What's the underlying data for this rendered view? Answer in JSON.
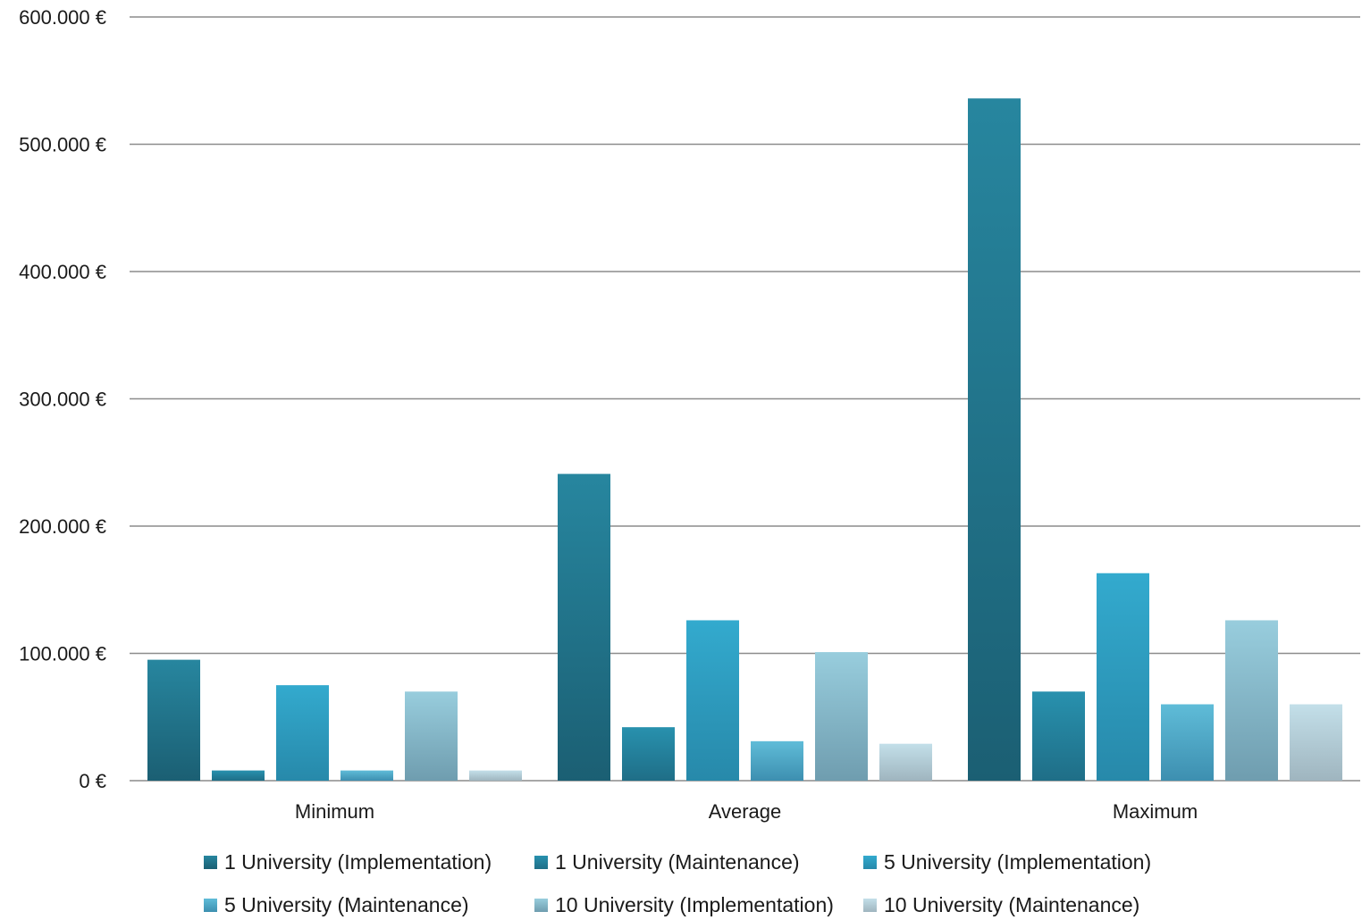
{
  "chart_data": {
    "type": "bar",
    "categories": [
      "Minimum",
      "Average",
      "Maximum"
    ],
    "series": [
      {
        "name": "1 University (Implementation)",
        "values": [
          95000,
          241000,
          536000
        ],
        "color_top": "#27869f",
        "color_bottom": "#1b5f73"
      },
      {
        "name": "1 University (Maintenance)",
        "values": [
          8000,
          42000,
          70000
        ],
        "color_top": "#2891ae",
        "color_bottom": "#1f6e87"
      },
      {
        "name": "5 University (Implementation)",
        "values": [
          75000,
          126000,
          163000
        ],
        "color_top": "#33aace",
        "color_bottom": "#2789aa"
      },
      {
        "name": "5 University (Maintenance)",
        "values": [
          8000,
          31000,
          60000
        ],
        "color_top": "#5fbcd8",
        "color_bottom": "#3d8fb0"
      },
      {
        "name": "10 University (Implementation)",
        "values": [
          70000,
          101000,
          126000
        ],
        "color_top": "#98cddd",
        "color_bottom": "#6f9daf"
      },
      {
        "name": "10 University (Maintenance)",
        "values": [
          8000,
          29000,
          60000
        ],
        "color_top": "#c3dfe9",
        "color_bottom": "#9fb5bf"
      }
    ],
    "y_ticks": [
      "0 €",
      "100.000 €",
      "200.000 €",
      "300.000 €",
      "400.000 €",
      "500.000 €",
      "600.000 €"
    ],
    "ylim": [
      0,
      600000
    ],
    "grid": true,
    "legend_position": "bottom"
  }
}
